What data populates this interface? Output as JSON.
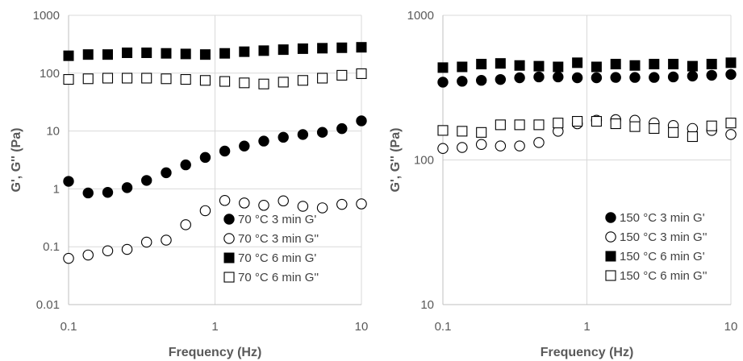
{
  "chart_data": [
    {
      "type": "scatter",
      "xlabel": "Frequency (Hz)",
      "ylabel": "G', G'' (Pa)",
      "xscale": "log",
      "yscale": "log",
      "xlim": [
        0.1,
        10
      ],
      "ylim": [
        0.01,
        1000
      ],
      "x_ticks": [
        "0.1",
        "1",
        "10"
      ],
      "y_ticks": [
        "0.01",
        "0.1",
        "1",
        "10",
        "100",
        "1000"
      ],
      "grid": true,
      "legend_position": "bottom-right",
      "x": [
        0.1,
        0.136,
        0.185,
        0.251,
        0.341,
        0.464,
        0.631,
        0.858,
        1.166,
        1.585,
        2.154,
        2.929,
        3.981,
        5.412,
        7.356,
        10
      ],
      "series": [
        {
          "name": "70 °C 3 min G'",
          "marker": "filled-circle",
          "values": [
            1.35,
            0.85,
            0.87,
            1.05,
            1.4,
            1.9,
            2.6,
            3.5,
            4.5,
            5.5,
            6.7,
            7.8,
            8.7,
            9.5,
            11,
            15
          ]
        },
        {
          "name": "70 °C 3 min G''",
          "marker": "open-circle",
          "values": [
            0.063,
            0.072,
            0.085,
            0.09,
            0.12,
            0.13,
            0.24,
            0.42,
            0.63,
            0.57,
            0.52,
            0.62,
            0.5,
            0.47,
            0.54,
            0.55
          ]
        },
        {
          "name": "70 °C 6 min G'",
          "marker": "filled-square",
          "values": [
            200,
            210,
            210,
            225,
            225,
            220,
            215,
            210,
            220,
            235,
            245,
            255,
            265,
            270,
            275,
            280
          ]
        },
        {
          "name": "70 °C 6 min G''",
          "marker": "open-square",
          "values": [
            78,
            80,
            82,
            82,
            82,
            80,
            78,
            75,
            72,
            68,
            65,
            70,
            75,
            82,
            92,
            98
          ]
        }
      ]
    },
    {
      "type": "scatter",
      "xlabel": "Frequency (Hz)",
      "ylabel": "G', G'' (Pa)",
      "xscale": "log",
      "yscale": "log",
      "xlim": [
        0.1,
        10
      ],
      "ylim": [
        10,
        1000
      ],
      "x_ticks": [
        "0.1",
        "1",
        "10"
      ],
      "y_ticks": [
        "10",
        "100",
        "1000"
      ],
      "grid": true,
      "legend_position": "bottom-right",
      "x": [
        0.1,
        0.136,
        0.185,
        0.251,
        0.341,
        0.464,
        0.631,
        0.858,
        1.166,
        1.585,
        2.154,
        2.929,
        3.981,
        5.412,
        7.356,
        10
      ],
      "series": [
        {
          "name": "150 °C 3 min G'",
          "marker": "filled-circle",
          "values": [
            345,
            350,
            355,
            360,
            370,
            375,
            375,
            370,
            370,
            372,
            372,
            372,
            375,
            380,
            385,
            390
          ]
        },
        {
          "name": "150 °C 3 min G''",
          "marker": "open-circle",
          "values": [
            120,
            122,
            128,
            125,
            125,
            132,
            158,
            178,
            188,
            190,
            188,
            180,
            173,
            165,
            160,
            150
          ]
        },
        {
          "name": "150 °C 6 min G'",
          "marker": "filled-square",
          "values": [
            435,
            440,
            460,
            465,
            450,
            445,
            440,
            470,
            440,
            460,
            450,
            460,
            460,
            445,
            460,
            470
          ]
        },
        {
          "name": "150 °C 6 min G''",
          "marker": "open-square",
          "values": [
            160,
            158,
            155,
            175,
            175,
            175,
            180,
            185,
            185,
            178,
            170,
            165,
            155,
            145,
            172,
            180
          ]
        }
      ]
    }
  ]
}
